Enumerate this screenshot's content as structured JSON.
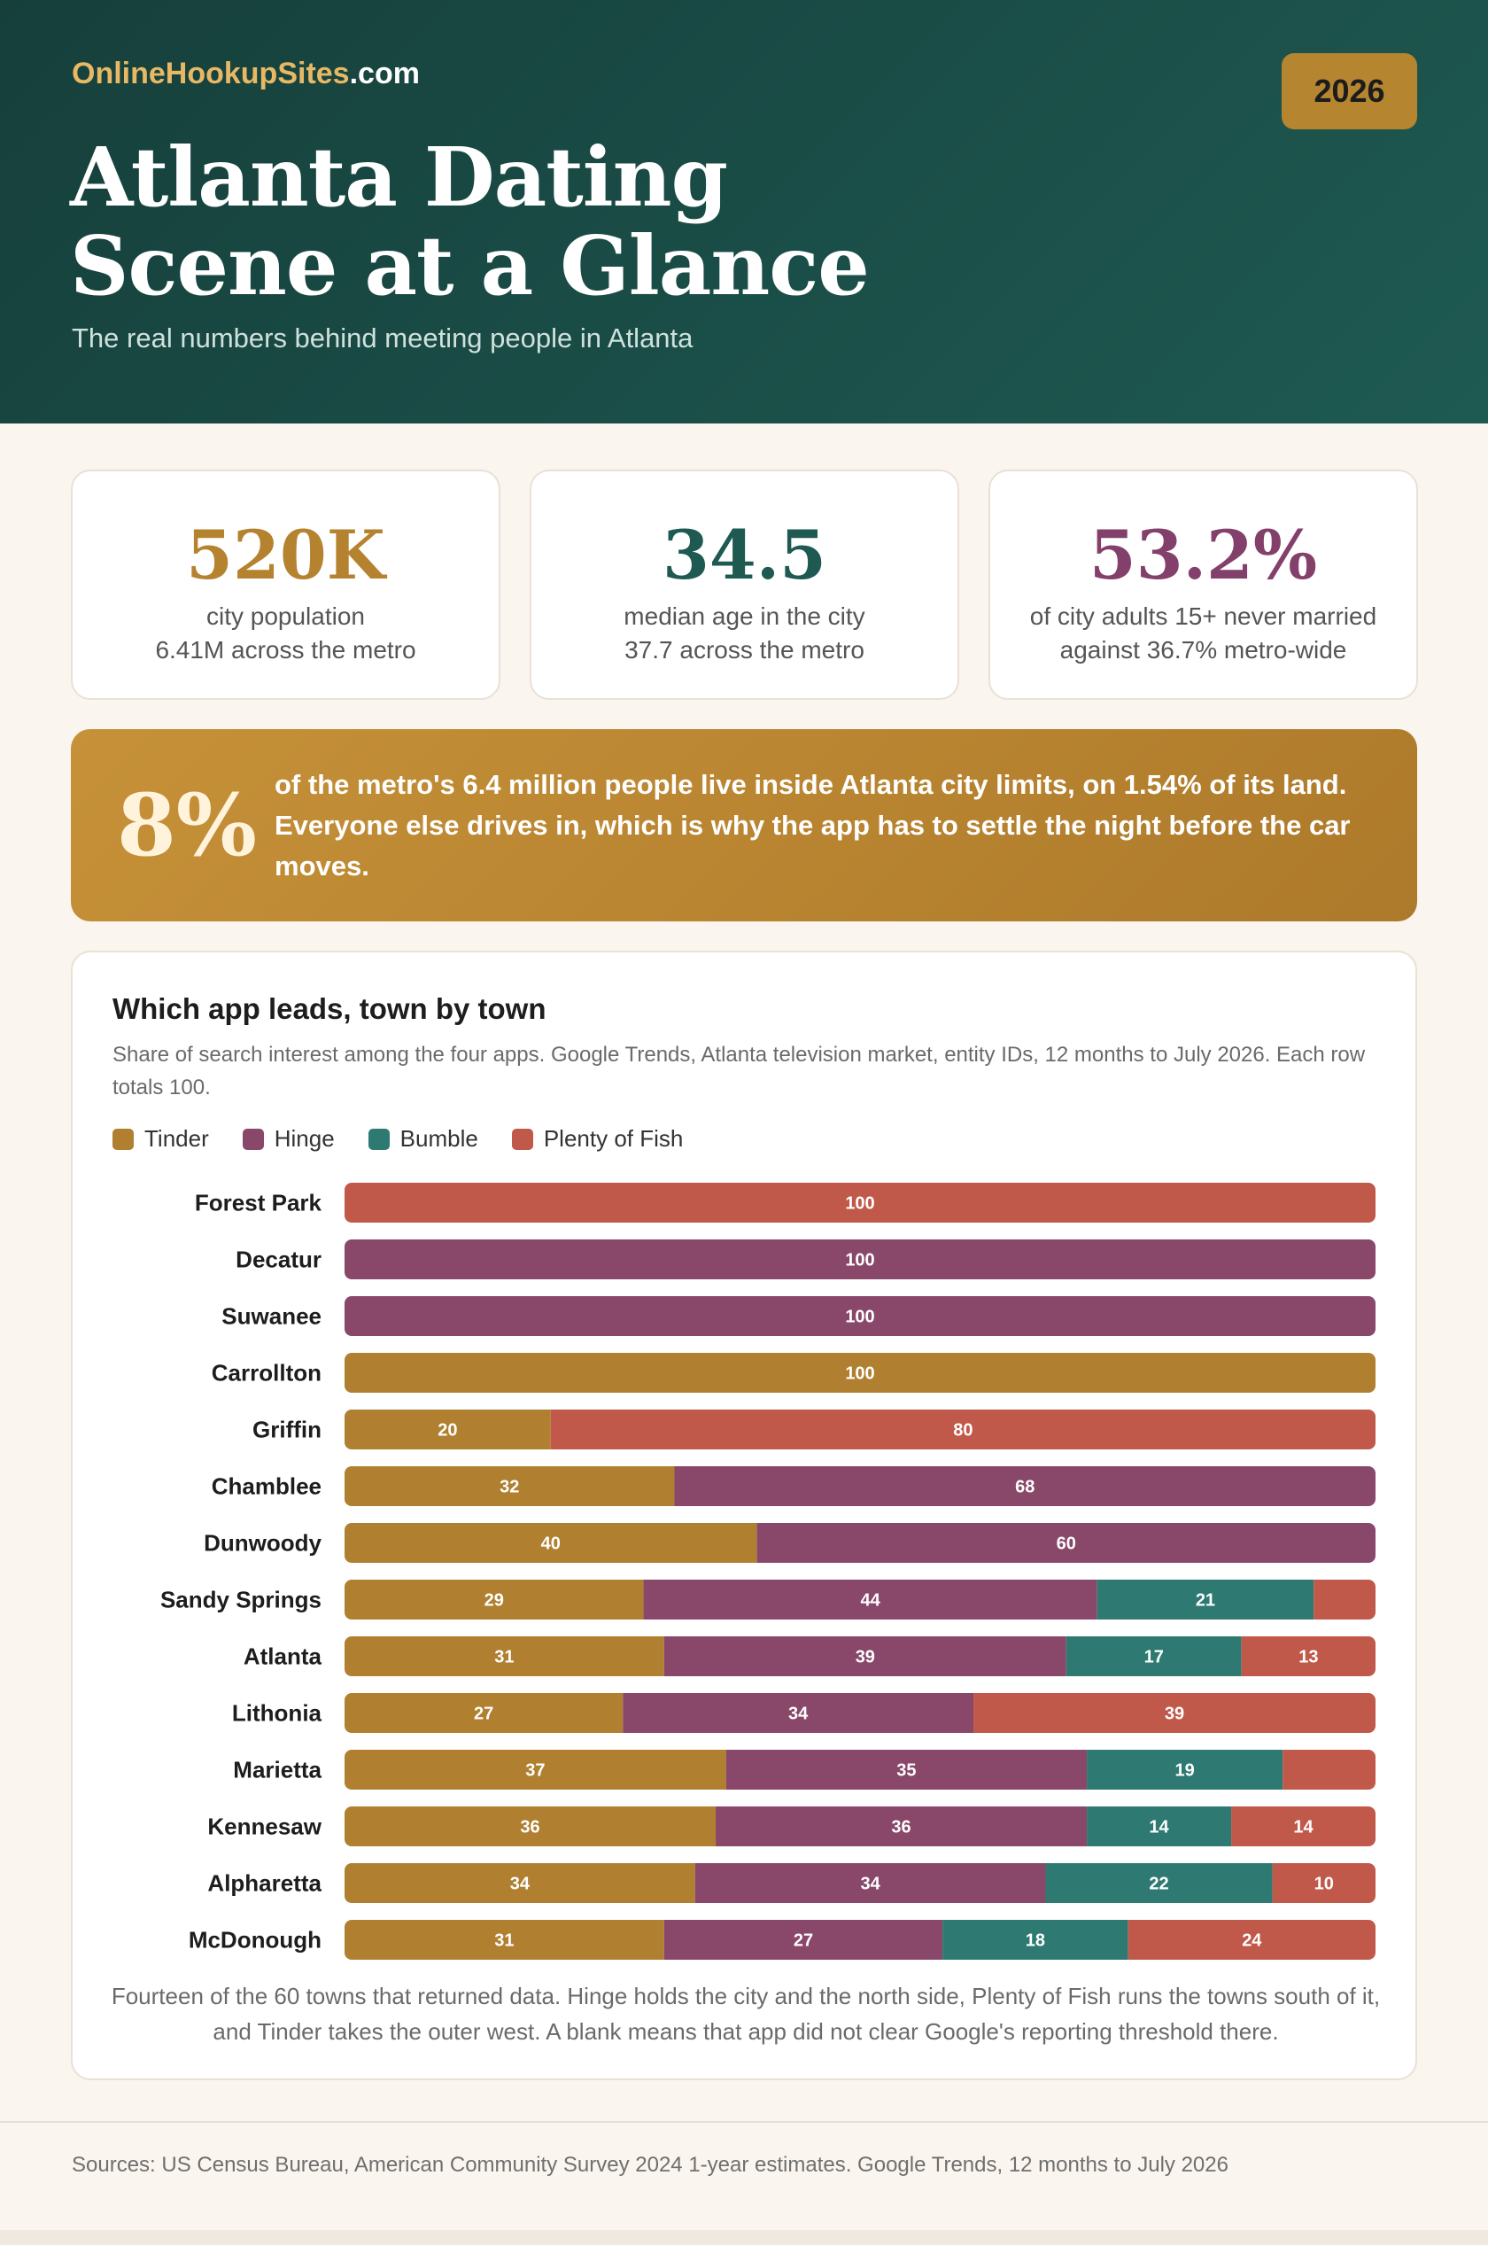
{
  "header": {
    "brand_highlight": "OnlineHookupSites",
    "brand_suffix": ".com",
    "year": "2026",
    "title_line1": "Atlanta Dating",
    "title_line2": "Scene at a Glance",
    "subtitle": "The real numbers behind meeting people in Atlanta"
  },
  "stats": [
    {
      "value": "520K",
      "line1": "city population",
      "line2": "6.41M across the metro",
      "color": "#b5832f"
    },
    {
      "value": "34.5",
      "line1": "median age in the city",
      "line2": "37.7 across the metro",
      "color": "#1f5a52"
    },
    {
      "value": "53.2%",
      "line1": "of city adults 15+ never married",
      "line2": "against 36.7% metro-wide",
      "color": "#83406a"
    }
  ],
  "banner": {
    "value": "8%",
    "text": "of the metro's 6.4 million people live inside Atlanta city limits, on 1.54% of its land. Everyone else drives in, which is why the app has to settle the night before the car moves."
  },
  "chart_section": {
    "title": "Which app leads, town by town",
    "description": "Share of search interest among the four apps. Google Trends, Atlanta television market, entity IDs, 12 months to July 2026. Each row totals 100.",
    "footnote": "Fourteen of the 60 towns that returned data. Hinge holds the city and the north side, Plenty of Fish runs the towns south of it, and Tinder takes the outer west. A blank means that app did not clear Google's reporting threshold there."
  },
  "chart_data": {
    "type": "bar",
    "orientation": "horizontal",
    "stacked": true,
    "xlim": [
      0,
      100
    ],
    "legend_position": "top-left",
    "categories": [
      "Forest Park",
      "Decatur",
      "Suwanee",
      "Carrollton",
      "Griffin",
      "Chamblee",
      "Dunwoody",
      "Sandy Springs",
      "Atlanta",
      "Lithonia",
      "Marietta",
      "Kennesaw",
      "Alpharetta",
      "McDonough"
    ],
    "series": [
      {
        "name": "Tinder",
        "color": "#b08030",
        "values": [
          0,
          0,
          0,
          100,
          20,
          32,
          40,
          29,
          31,
          27,
          37,
          36,
          34,
          31
        ]
      },
      {
        "name": "Hinge",
        "color": "#89476a",
        "values": [
          0,
          100,
          100,
          0,
          0,
          68,
          60,
          44,
          39,
          34,
          35,
          36,
          34,
          27
        ]
      },
      {
        "name": "Bumble",
        "color": "#2e7a72",
        "values": [
          0,
          0,
          0,
          0,
          0,
          0,
          0,
          21,
          17,
          0,
          19,
          14,
          22,
          18
        ]
      },
      {
        "name": "Plenty of Fish",
        "color": "#c1594a",
        "values": [
          100,
          0,
          0,
          0,
          80,
          0,
          0,
          6,
          13,
          39,
          9,
          14,
          10,
          24
        ]
      }
    ],
    "hidden_value_labels": [
      [
        7,
        3
      ],
      [
        10,
        3
      ]
    ]
  },
  "sources": "Sources: US Census Bureau, American Community Survey 2024 1-year estimates. Google Trends, 12 months to July 2026"
}
